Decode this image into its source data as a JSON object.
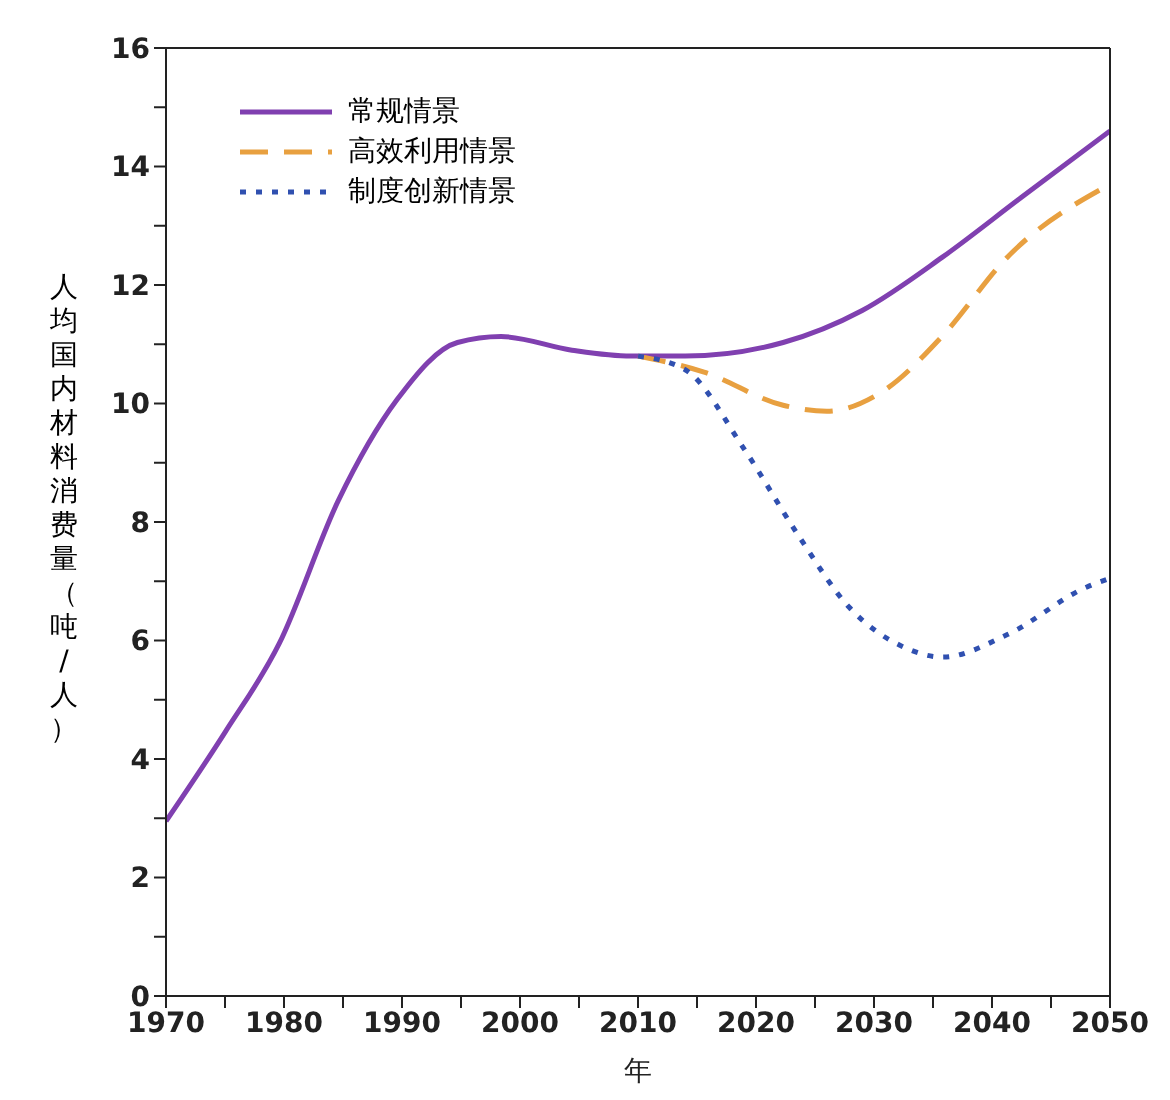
{
  "chart_data": {
    "type": "line",
    "xlabel": "年",
    "ylabel": "人均国内材料消费量（吨/人）",
    "xlim": [
      1970,
      2050
    ],
    "ylim": [
      0,
      16
    ],
    "xticks": [
      1970,
      {
        "value": 1975,
        "label": null
      },
      1980,
      {
        "value": 1985,
        "label": null
      },
      1990,
      {
        "value": 1995,
        "label": null
      },
      2000,
      {
        "value": 2005,
        "label": null
      },
      2010,
      {
        "value": 2015,
        "label": null
      },
      2020,
      {
        "value": 2025,
        "label": null
      },
      2030,
      {
        "value": 2035,
        "label": null
      },
      2040,
      {
        "value": 2045,
        "label": null
      },
      2050
    ],
    "yticks": [
      0,
      {
        "value": 1,
        "label": null
      },
      2,
      {
        "value": 3,
        "label": null
      },
      4,
      {
        "value": 5,
        "label": null
      },
      6,
      {
        "value": 7,
        "label": null
      },
      8,
      {
        "value": 9,
        "label": null
      },
      10,
      {
        "value": 11,
        "label": null
      },
      12,
      {
        "value": 13,
        "label": null
      },
      14,
      {
        "value": 15,
        "label": null
      },
      16
    ],
    "legend": "top left",
    "marker": "none",
    "series": [
      {
        "name": "常规情景",
        "color": "#8040b0",
        "line_style": "solid",
        "x": [
          1970,
          1975,
          1979.6,
          1984.6,
          1989.6,
          1994.7,
          1998.4,
          2004.4,
          2009.4,
          2014,
          2022.3,
          2029,
          2035.8,
          2042.5,
          2050
        ],
        "values": [
          2.95,
          4.45,
          5.95,
          8.36,
          10.07,
          11.03,
          11.13,
          10.9,
          10.8,
          10.8,
          11.03,
          11.57,
          12.47,
          13.48,
          14.6
        ]
      },
      {
        "name": "高效利用情景",
        "color": "#e8a040",
        "line_style": "dashed",
        "x": [
          2010,
          2015.6,
          2022.3,
          2026,
          2030.7,
          2035.8,
          2041.3,
          2050
        ],
        "values": [
          10.8,
          10.53,
          9.97,
          9.87,
          10.2,
          11.14,
          12.47,
          13.7
        ]
      },
      {
        "name": "制度创新情景",
        "color": "#3050b0",
        "line_style": "dotted",
        "x": [
          2010,
          2014,
          2019,
          2023.5,
          2027.9,
          2032.4,
          2035.8,
          2041.3,
          2048,
          2050
        ],
        "values": [
          10.8,
          10.57,
          9.23,
          7.8,
          6.56,
          5.9,
          5.72,
          6.1,
          6.9,
          7.05
        ]
      }
    ]
  }
}
